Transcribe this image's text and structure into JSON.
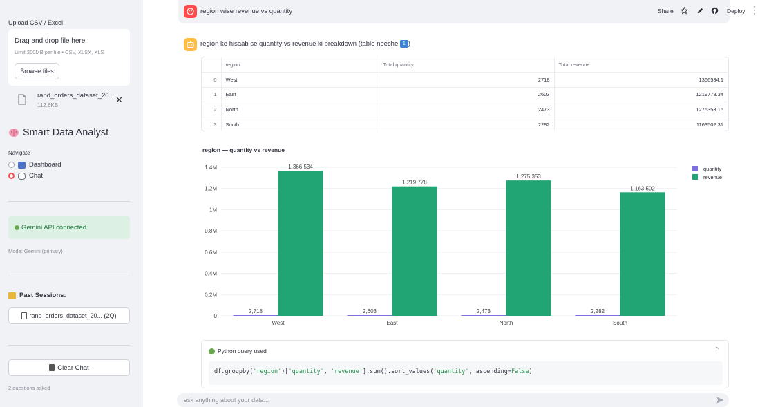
{
  "sidebar": {
    "upload_label": "Upload CSV / Excel",
    "dropzone_title": "Drag and drop file here",
    "dropzone_sub": "Limit 200MB per file • CSV, XLSX, XLS",
    "browse_label": "Browse files",
    "file_name": "rand_orders_dataset_20...",
    "file_size": "112.6KB",
    "app_title": "Smart Data Analyst",
    "nav_label": "Navigate",
    "nav_items": [
      {
        "label": "Dashboard",
        "selected": false
      },
      {
        "label": "Chat",
        "selected": true
      }
    ],
    "api_status": "Gemini API connected",
    "mode_text": "Mode: Gemini (primary)",
    "past_sessions_label": "Past Sessions:",
    "session_item": "rand_orders_dataset_20... (2Q)",
    "clear_label": "Clear Chat",
    "questions_count": "2 questions asked"
  },
  "header": {
    "user_message": "region wise revenue vs quantity",
    "share_label": "Share",
    "deploy_label": "Deploy"
  },
  "assistant": {
    "message": "region ke hisaab se quantity vs revenue ki breakdown (table neeche ",
    "message_end": ")",
    "badge": "1"
  },
  "table": {
    "columns": [
      "",
      "region",
      "Total quantity",
      "Total revenue"
    ],
    "rows": [
      {
        "idx": "0",
        "region": "West",
        "qty": "2718",
        "rev": "1366534.1"
      },
      {
        "idx": "1",
        "region": "East",
        "qty": "2603",
        "rev": "1219778.34"
      },
      {
        "idx": "2",
        "region": "North",
        "qty": "2473",
        "rev": "1275353.15"
      },
      {
        "idx": "3",
        "region": "South",
        "qty": "2282",
        "rev": "1163502.31"
      }
    ]
  },
  "chart_data": {
    "type": "bar",
    "title": "region — quantity vs revenue",
    "categories": [
      "West",
      "East",
      "North",
      "South"
    ],
    "series": [
      {
        "name": "quantity",
        "values": [
          2718,
          2603,
          2473,
          2282
        ],
        "labels": [
          "2,718",
          "2,603",
          "2,473",
          "2,282"
        ],
        "color": "#7c6fde"
      },
      {
        "name": "revenue",
        "values": [
          1366534,
          1219778,
          1275353,
          1163502
        ],
        "labels": [
          "1,366,534",
          "1,219,778",
          "1,275,353",
          "1,163,502"
        ],
        "color": "#22a575"
      }
    ],
    "ylim": [
      0,
      1400000
    ],
    "yticks": [
      0,
      200000,
      400000,
      600000,
      800000,
      1000000,
      1200000,
      1400000
    ],
    "ytick_labels": [
      "0",
      "0.2M",
      "0.4M",
      "0.6M",
      "0.8M",
      "1M",
      "1.2M",
      "1.4M"
    ],
    "legend": "top-right",
    "grid": true
  },
  "code": {
    "header": "Python query used",
    "pre": "df.groupby(",
    "s1": "'region'",
    "mid1": ")[",
    "s2": "'quantity'",
    "mid2": ", ",
    "s3": "'revenue'",
    "mid3": "].sum().sort_values(",
    "s4": "'quantity'",
    "mid4": ", ascending=",
    "s5": "False",
    "post": ")"
  },
  "input": {
    "placeholder": "ask anything about your data..."
  },
  "colors": {
    "accent": "#ff4b4b",
    "api_bg": "#dcf0e3",
    "quantity": "#7c6fde",
    "revenue": "#22a575"
  }
}
